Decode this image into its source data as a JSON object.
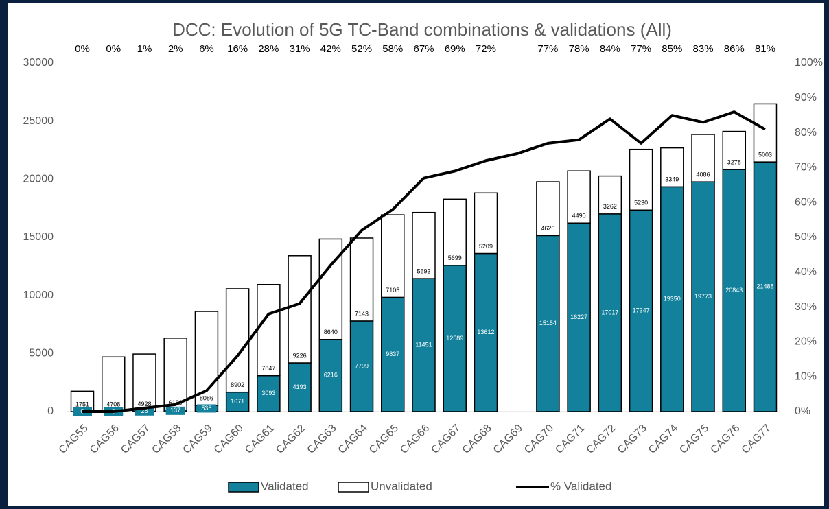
{
  "chart_data": {
    "type": "bar",
    "stacked": true,
    "title": "DCC: Evolution of 5G TC-Band combinations & validations (All)",
    "categories": [
      "CAG55",
      "CAG56",
      "CAG57",
      "CAG58",
      "CAG59",
      "CAG60",
      "CAG61",
      "CAG62",
      "CAG63",
      "CAG64",
      "CAG65",
      "CAG66",
      "CAG67",
      "CAG68",
      "CAG69",
      "CAG70",
      "CAG71",
      "CAG72",
      "CAG73",
      "CAG74",
      "CAG75",
      "CAG76",
      "CAG77"
    ],
    "series": [
      {
        "name": "Validated",
        "color": "#13819b",
        "values": [
          0,
          0,
          28,
          137,
          535,
          1671,
          3093,
          4193,
          6216,
          7799,
          9837,
          11451,
          12589,
          13612,
          null,
          15154,
          16227,
          17017,
          17347,
          19350,
          19773,
          20843,
          21488
        ]
      },
      {
        "name": "Unvalidated",
        "color": "#ffffff",
        "values": [
          1751,
          4708,
          4928,
          6189,
          8086,
          8902,
          7847,
          9226,
          8640,
          7143,
          7105,
          5693,
          5699,
          5209,
          null,
          4626,
          4490,
          3262,
          5230,
          3349,
          4086,
          3278,
          5003
        ]
      },
      {
        "name": "% Validated",
        "color": "#000000",
        "type": "line",
        "axis": "y2",
        "values": [
          0,
          0,
          1,
          2,
          6,
          16,
          28,
          31,
          42,
          52,
          58,
          67,
          69,
          72,
          74,
          77,
          78,
          84,
          77,
          85,
          83,
          86,
          81
        ],
        "value_labels": [
          "0%",
          "0%",
          "1%",
          "2%",
          "6%",
          "16%",
          "28%",
          "31%",
          "42%",
          "52%",
          "58%",
          "67%",
          "69%",
          "72%",
          null,
          "77%",
          "78%",
          "84%",
          "77%",
          "85%",
          "83%",
          "86%",
          "81%"
        ]
      }
    ],
    "ylim": [
      0,
      30000
    ],
    "yticks": [
      0,
      5000,
      10000,
      15000,
      20000,
      25000,
      30000
    ],
    "y2lim": [
      0,
      100
    ],
    "y2ticks": [
      {
        "value": 0,
        "label": "0%"
      },
      {
        "value": 10,
        "label": "10%"
      },
      {
        "value": 20,
        "label": "20%"
      },
      {
        "value": 30,
        "label": "30%"
      },
      {
        "value": 40,
        "label": "40%"
      },
      {
        "value": 50,
        "label": "50%"
      },
      {
        "value": 60,
        "label": "60%"
      },
      {
        "value": 70,
        "label": "70%"
      },
      {
        "value": 80,
        "label": "80%"
      },
      {
        "value": 90,
        "label": "90%"
      },
      {
        "value": 100,
        "label": "100%"
      }
    ],
    "grid": false,
    "legend": "bottom"
  }
}
